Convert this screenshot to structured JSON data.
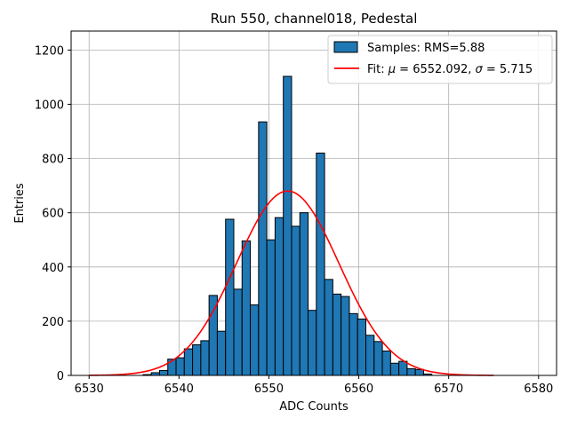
{
  "chart_data": {
    "type": "bar",
    "title": "Run 550, channel018, Pedestal",
    "xlabel": "ADC Counts",
    "ylabel": "Entries",
    "xlim": [
      6528,
      6582
    ],
    "ylim": [
      0,
      1270
    ],
    "xticks": [
      6530,
      6540,
      6550,
      6560,
      6570,
      6580
    ],
    "yticks": [
      0,
      200,
      400,
      600,
      800,
      1000,
      1200
    ],
    "grid": true,
    "legend_position": "top-right",
    "colors": {
      "bar_fill": "#1f77b4",
      "bar_edge": "#000000",
      "fit_line": "#ff0000",
      "grid": "#b0b0b0"
    },
    "histogram": {
      "name": "Samples: RMS=5.88",
      "bin_edges_start": 6536,
      "bin_width": 0.918,
      "counts": [
        3,
        10,
        18,
        60,
        65,
        98,
        113,
        128,
        295,
        163,
        576,
        318,
        496,
        260,
        935,
        500,
        582,
        1103,
        550,
        600,
        240,
        820,
        354,
        300,
        291,
        228,
        208,
        148,
        125,
        90,
        45,
        52,
        25,
        22,
        5
      ]
    },
    "fit": {
      "name_prefix": "Fit: ",
      "mu_symbol": "μ",
      "mu_value": " = 6552.092, ",
      "sigma_symbol": "σ",
      "sigma_value": " = 5.715",
      "mu": 6552.092,
      "sigma": 5.715,
      "amplitude": 680,
      "x_range": [
        6530,
        6575
      ]
    }
  }
}
